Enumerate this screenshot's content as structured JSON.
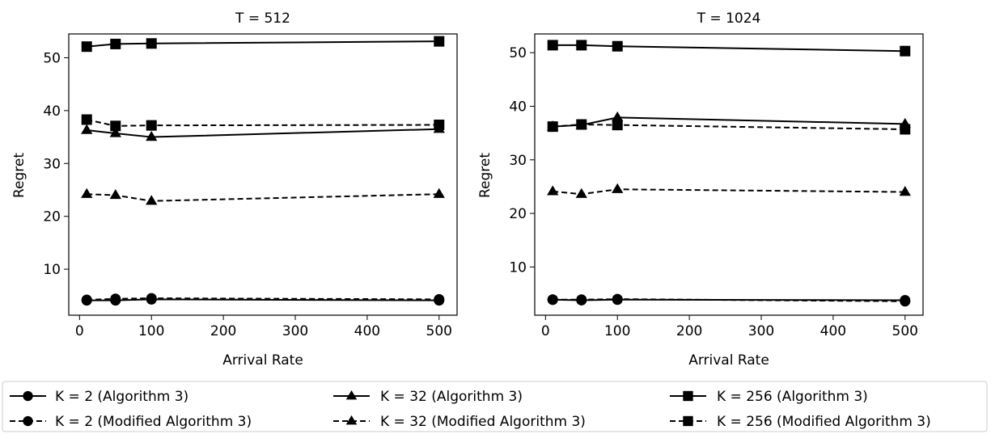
{
  "chart_data": [
    {
      "type": "line",
      "title": "T = 512",
      "xlabel": "Arrival Rate",
      "ylabel": "Regret",
      "x": [
        10,
        50,
        100,
        500
      ],
      "xlim": [
        -15,
        525
      ],
      "ylim": [
        1.3,
        54.5
      ],
      "xticks": [
        0,
        100,
        200,
        300,
        400,
        500
      ],
      "yticks": [
        10,
        20,
        30,
        40,
        50
      ],
      "series": [
        {
          "name": "K = 2 (Algorithm 3)",
          "style": "solid",
          "marker": "circle",
          "values": [
            4.1,
            4.1,
            4.3,
            4.1
          ]
        },
        {
          "name": "K = 2 (Modified Algorithm 3)",
          "style": "dashed",
          "marker": "circle",
          "values": [
            4.2,
            4.4,
            4.5,
            4.3
          ]
        },
        {
          "name": "K = 32 (Algorithm 3)",
          "style": "solid",
          "marker": "triangle",
          "values": [
            36.3,
            35.7,
            35.0,
            36.5
          ]
        },
        {
          "name": "K = 32 (Modified Algorithm 3)",
          "style": "dashed",
          "marker": "triangle",
          "values": [
            24.2,
            24.0,
            22.9,
            24.2
          ]
        },
        {
          "name": "K = 256 (Algorithm 3)",
          "style": "solid",
          "marker": "square",
          "values": [
            52.1,
            52.6,
            52.7,
            53.1
          ]
        },
        {
          "name": "K = 256 (Modified Algorithm 3)",
          "style": "dashed",
          "marker": "square",
          "values": [
            38.3,
            37.1,
            37.2,
            37.3
          ]
        }
      ]
    },
    {
      "type": "line",
      "title": "T = 1024",
      "xlabel": "Arrival Rate",
      "ylabel": "Regret",
      "x": [
        10,
        50,
        100,
        500
      ],
      "xlim": [
        -15,
        525
      ],
      "ylim": [
        1.0,
        53.5
      ],
      "xticks": [
        0,
        100,
        200,
        300,
        400,
        500
      ],
      "yticks": [
        10,
        20,
        30,
        40,
        50
      ],
      "series": [
        {
          "name": "K = 2 (Algorithm 3)",
          "style": "solid",
          "marker": "circle",
          "values": [
            3.9,
            3.8,
            3.9,
            3.8
          ]
        },
        {
          "name": "K = 2 (Modified Algorithm 3)",
          "style": "dashed",
          "marker": "circle",
          "values": [
            3.9,
            3.9,
            4.0,
            3.6
          ]
        },
        {
          "name": "K = 32 (Algorithm 3)",
          "style": "solid",
          "marker": "triangle",
          "values": [
            36.2,
            36.5,
            37.9,
            36.7
          ]
        },
        {
          "name": "K = 32 (Modified Algorithm 3)",
          "style": "dashed",
          "marker": "triangle",
          "values": [
            24.1,
            23.6,
            24.5,
            24.0
          ]
        },
        {
          "name": "K = 256 (Algorithm 3)",
          "style": "solid",
          "marker": "square",
          "values": [
            51.4,
            51.4,
            51.2,
            50.3
          ]
        },
        {
          "name": "K = 256 (Modified Algorithm 3)",
          "style": "dashed",
          "marker": "square",
          "values": [
            36.2,
            36.6,
            36.5,
            35.7
          ]
        }
      ]
    }
  ],
  "legend": {
    "items": [
      "K = 2 (Algorithm 3)",
      "K = 32 (Algorithm 3)",
      "K = 256 (Algorithm 3)",
      "K = 2 (Modified Algorithm 3)",
      "K = 32 (Modified Algorithm 3)",
      "K = 256 (Modified Algorithm 3)"
    ]
  }
}
